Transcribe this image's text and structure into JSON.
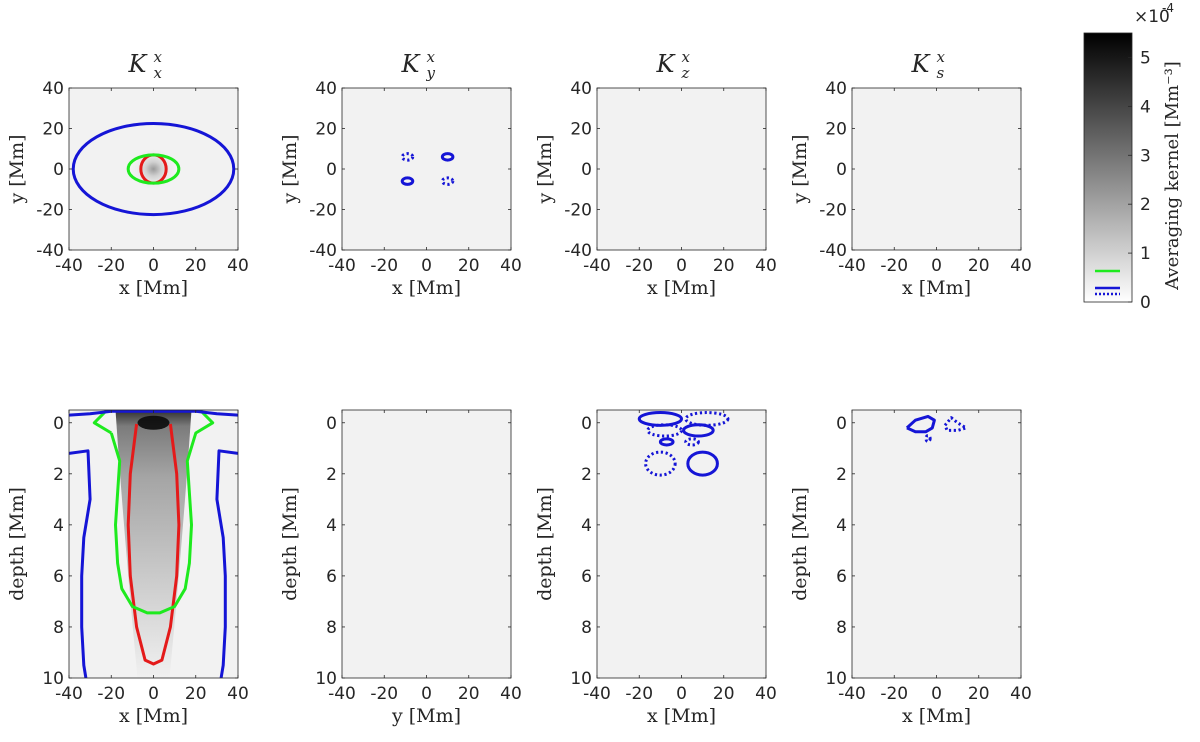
{
  "chart_data": {
    "type": "heatmap",
    "colorbar": {
      "label": "Averaging kernel [Mm⁻³]",
      "exponent": "×10",
      "exponent_power": "-4",
      "ticks": [
        0,
        1,
        2,
        3,
        4,
        5
      ],
      "range": [
        0,
        5.5
      ],
      "colormap": "gray (white to black)"
    },
    "legend_lines": [
      {
        "style": "solid",
        "color": "#1eea1e"
      },
      {
        "style": "solid",
        "color": "#1515d6"
      },
      {
        "style": "dotted",
        "color": "#1515d6"
      }
    ],
    "colors": {
      "red": "#e41a1a",
      "green": "#1eea1e",
      "blue": "#1515d6",
      "background_field": "#f2f2f2"
    },
    "panels": [
      {
        "id": "top-x",
        "row": "top",
        "title": "K",
        "sub": "x",
        "sup": "x",
        "xlabel": "x [Mm]",
        "ylabel": "y [Mm]",
        "xticks": [
          -40,
          -20,
          0,
          20,
          40
        ],
        "yticks": [
          40,
          20,
          0,
          -20,
          -40
        ],
        "xlim": [
          -40,
          40
        ],
        "ylim": [
          -40,
          40
        ],
        "show_xlabel": true,
        "show_ylabel": true,
        "heat_peak": [
          0,
          0
        ],
        "contours": [
          {
            "color": "red",
            "style": "solid",
            "center": [
              0,
              0
            ],
            "rx": 6,
            "ry": 7
          },
          {
            "color": "green",
            "style": "solid",
            "center": [
              0,
              0
            ],
            "rx": 12,
            "ry": 7
          },
          {
            "color": "blue",
            "style": "solid",
            "shape": "lens",
            "half_width": 38,
            "half_height": 22.5
          }
        ]
      },
      {
        "id": "top-y",
        "row": "top",
        "title": "K",
        "sub": "y",
        "sup": "x",
        "xlabel": "x [Mm]",
        "ylabel": "y [Mm]",
        "xticks": [
          -40,
          -20,
          0,
          20,
          40
        ],
        "yticks": [
          40,
          20,
          0,
          -20,
          -40
        ],
        "xlim": [
          -40,
          40
        ],
        "ylim": [
          -40,
          40
        ],
        "show_xlabel": true,
        "show_ylabel": true,
        "contours": [
          {
            "color": "blue",
            "style": "dotted",
            "center": [
              -9,
              6
            ],
            "rx": 2.5,
            "ry": 1.6
          },
          {
            "color": "blue",
            "style": "solid",
            "center": [
              10,
              6
            ],
            "rx": 2.5,
            "ry": 1.6
          },
          {
            "color": "blue",
            "style": "solid",
            "center": [
              -9,
              -6
            ],
            "rx": 2.5,
            "ry": 1.6
          },
          {
            "color": "blue",
            "style": "dotted",
            "center": [
              10,
              -6
            ],
            "rx": 2.5,
            "ry": 1.6
          }
        ]
      },
      {
        "id": "top-z",
        "row": "top",
        "title": "K",
        "sub": "z",
        "sup": "x",
        "xlabel": "x [Mm]",
        "ylabel": "y [Mm]",
        "xticks": [
          -40,
          -20,
          0,
          20,
          40
        ],
        "yticks": [
          40,
          20,
          0,
          -20,
          -40
        ],
        "xlim": [
          -40,
          40
        ],
        "ylim": [
          -40,
          40
        ],
        "show_xlabel": true,
        "show_ylabel": true,
        "contours": []
      },
      {
        "id": "top-s",
        "row": "top",
        "title": "K",
        "sub": "s",
        "sup": "x",
        "xlabel": "x [Mm]",
        "ylabel": "y [Mm]",
        "xticks": [
          -40,
          -20,
          0,
          20,
          40
        ],
        "yticks": [
          40,
          20,
          0,
          -20,
          -40
        ],
        "xlim": [
          -40,
          40
        ],
        "ylim": [
          -40,
          40
        ],
        "show_xlabel": true,
        "show_ylabel": true,
        "contours": []
      },
      {
        "id": "bottom-x",
        "row": "bottom",
        "title": "",
        "sub": "",
        "sup": "",
        "xlabel": "x [Mm]",
        "ylabel": "depth [Mm]",
        "xticks": [
          -40,
          -20,
          0,
          20,
          40
        ],
        "yticks": [
          0,
          2,
          4,
          6,
          8,
          10
        ],
        "xlim": [
          -40,
          40
        ],
        "ylim": [
          -0.5,
          10
        ],
        "show_xlabel": true,
        "show_ylabel": true,
        "heat_column": true,
        "contours": [
          {
            "color": "red",
            "style": "solid",
            "shape": "path",
            "points": [
              [
                -8,
                0.05
              ],
              [
                -11,
                2
              ],
              [
                -12,
                4
              ],
              [
                -11,
                6
              ],
              [
                -8,
                8
              ],
              [
                -4,
                9.3
              ],
              [
                0,
                9.45
              ],
              [
                4,
                9.3
              ],
              [
                8,
                8
              ],
              [
                11,
                6
              ],
              [
                12,
                4
              ],
              [
                11,
                2
              ],
              [
                8,
                0.05
              ]
            ]
          },
          {
            "color": "green",
            "style": "solid",
            "shape": "path",
            "points": [
              [
                -20,
                0.4
              ],
              [
                -28,
                0
              ],
              [
                -22,
                -0.5
              ],
              [
                0,
                -0.55
              ],
              [
                22,
                -0.5
              ],
              [
                28,
                0
              ],
              [
                20,
                0.4
              ],
              [
                16,
                1.5
              ],
              [
                18,
                4
              ],
              [
                17,
                5.5
              ],
              [
                15,
                6.5
              ],
              [
                10,
                7.2
              ],
              [
                3,
                7.45
              ],
              [
                0,
                7.45
              ],
              [
                -3,
                7.45
              ],
              [
                -10,
                7.2
              ],
              [
                -15,
                6.5
              ],
              [
                -17,
                5.5
              ],
              [
                -18,
                4
              ],
              [
                -16,
                1.5
              ],
              [
                -20,
                0.4
              ]
            ]
          },
          {
            "color": "blue",
            "style": "solid",
            "shape": "path",
            "points": [
              [
                -40,
                -0.3
              ],
              [
                -30,
                -0.35
              ],
              [
                -20,
                -0.45
              ],
              [
                0,
                -0.45
              ],
              [
                20,
                -0.45
              ],
              [
                30,
                -0.35
              ],
              [
                40,
                -0.3
              ]
            ]
          },
          {
            "color": "blue",
            "style": "solid",
            "shape": "path",
            "points": [
              [
                -40,
                1.2
              ],
              [
                -31,
                1.1
              ],
              [
                -30,
                3
              ],
              [
                -33,
                4.5
              ],
              [
                -34,
                6
              ],
              [
                -34,
                8
              ],
              [
                -33,
                9.5
              ],
              [
                -32,
                10
              ]
            ]
          },
          {
            "color": "blue",
            "style": "solid",
            "shape": "path",
            "points": [
              [
                40,
                1.2
              ],
              [
                31,
                1.1
              ],
              [
                30,
                3
              ],
              [
                33,
                4.5
              ],
              [
                34,
                6
              ],
              [
                34,
                8
              ],
              [
                33,
                9.5
              ],
              [
                32,
                10
              ]
            ]
          }
        ]
      },
      {
        "id": "bottom-y",
        "row": "bottom",
        "title": "",
        "sub": "",
        "sup": "",
        "xlabel": "y [Mm]",
        "ylabel": "depth [Mm]",
        "xticks": [
          -40,
          -20,
          0,
          20,
          40
        ],
        "yticks": [
          0,
          2,
          4,
          6,
          8,
          10
        ],
        "xlim": [
          -40,
          40
        ],
        "ylim": [
          -0.5,
          10
        ],
        "show_xlabel": true,
        "show_ylabel": true,
        "contours": []
      },
      {
        "id": "bottom-z",
        "row": "bottom",
        "title": "",
        "sub": "",
        "sup": "",
        "xlabel": "x [Mm]",
        "ylabel": "depth [Mm]",
        "xticks": [
          -40,
          -20,
          0,
          20,
          40
        ],
        "yticks": [
          0,
          2,
          4,
          6,
          8,
          10
        ],
        "xlim": [
          -40,
          40
        ],
        "ylim": [
          -0.5,
          10
        ],
        "show_xlabel": true,
        "show_ylabel": true,
        "contours": [
          {
            "color": "blue",
            "style": "solid",
            "center": [
              -10,
              -0.15
            ],
            "rx": 10,
            "ry": 0.25
          },
          {
            "color": "blue",
            "style": "dotted",
            "center": [
              12,
              -0.15
            ],
            "rx": 10,
            "ry": 0.25
          },
          {
            "color": "blue",
            "style": "dotted",
            "center": [
              -8,
              0.3
            ],
            "rx": 8,
            "ry": 0.22
          },
          {
            "color": "blue",
            "style": "solid",
            "center": [
              8,
              0.3
            ],
            "rx": 7,
            "ry": 0.22
          },
          {
            "color": "blue",
            "style": "solid",
            "center": [
              -7,
              0.75
            ],
            "rx": 3,
            "ry": 0.12
          },
          {
            "color": "blue",
            "style": "dotted",
            "center": [
              5,
              0.75
            ],
            "rx": 3,
            "ry": 0.12
          },
          {
            "color": "blue",
            "style": "dotted",
            "center": [
              -10,
              1.6
            ],
            "rx": 7,
            "ry": 0.45
          },
          {
            "color": "blue",
            "style": "solid",
            "center": [
              10,
              1.6
            ],
            "rx": 7,
            "ry": 0.45
          }
        ]
      },
      {
        "id": "bottom-s",
        "row": "bottom",
        "title": "",
        "sub": "",
        "sup": "",
        "xlabel": "x [Mm]",
        "ylabel": "depth [Mm]",
        "xticks": [
          -40,
          -20,
          0,
          20,
          40
        ],
        "yticks": [
          0,
          2,
          4,
          6,
          8,
          10
        ],
        "xlim": [
          -40,
          40
        ],
        "ylim": [
          -0.5,
          10
        ],
        "show_xlabel": true,
        "show_ylabel": true,
        "contours": [
          {
            "color": "blue",
            "style": "solid",
            "shape": "path",
            "points": [
              [
                -14,
                0.2
              ],
              [
                -10,
                -0.1
              ],
              [
                -4,
                -0.25
              ],
              [
                -1,
                -0.1
              ],
              [
                -2,
                0.2
              ],
              [
                -5,
                0.35
              ],
              [
                -10,
                0.35
              ],
              [
                -14,
                0.2
              ]
            ]
          },
          {
            "color": "blue",
            "style": "dotted",
            "shape": "path",
            "points": [
              [
                4,
                0.1
              ],
              [
                7,
                -0.2
              ],
              [
                10,
                0
              ],
              [
                14,
                0.2
              ],
              [
                10,
                0.3
              ],
              [
                5,
                0.3
              ],
              [
                4,
                0.1
              ]
            ]
          },
          {
            "color": "blue",
            "style": "dotted",
            "center": [
              -4,
              0.62
            ],
            "rx": 1,
            "ry": 0.12
          }
        ]
      }
    ]
  }
}
